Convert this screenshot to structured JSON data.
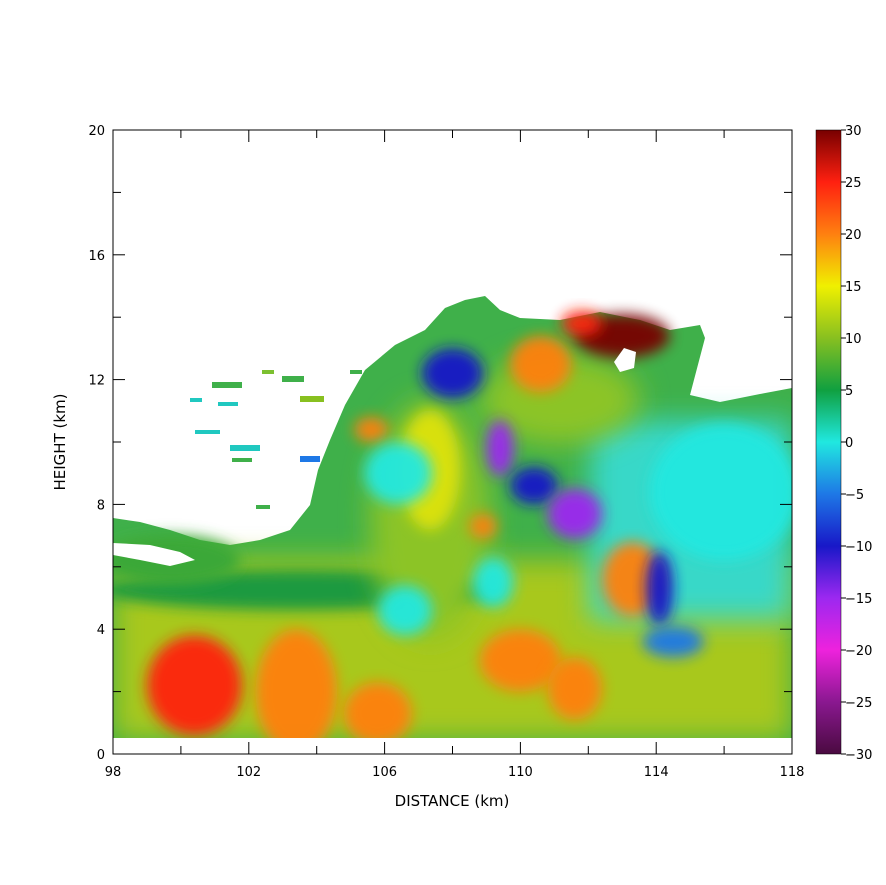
{
  "chart_data": {
    "type": "heatmap",
    "title": "",
    "xlabel": "DISTANCE (km)",
    "ylabel": "HEIGHT (km)",
    "xlim": [
      98,
      118
    ],
    "ylim": [
      0,
      20
    ],
    "x_ticks": [
      98,
      102,
      106,
      110,
      114,
      118
    ],
    "y_ticks": [
      0,
      4,
      8,
      12,
      16,
      20
    ],
    "colorbar": {
      "range": [
        -30,
        30
      ],
      "ticks": [
        30,
        25,
        20,
        15,
        10,
        5,
        0,
        -5,
        -10,
        -15,
        -20,
        -25,
        -30
      ],
      "stops": [
        {
          "v": -30,
          "color": "#4a0a40"
        },
        {
          "v": -25,
          "color": "#8a1890"
        },
        {
          "v": -20,
          "color": "#ee22dd"
        },
        {
          "v": -15,
          "color": "#9c28f0"
        },
        {
          "v": -10,
          "color": "#1818c8"
        },
        {
          "v": -5,
          "color": "#1e78e6"
        },
        {
          "v": 0,
          "color": "#20e8e0"
        },
        {
          "v": 5,
          "color": "#10a040"
        },
        {
          "v": 10,
          "color": "#88c020"
        },
        {
          "v": 15,
          "color": "#f0f000"
        },
        {
          "v": 20,
          "color": "#ff8010"
        },
        {
          "v": 25,
          "color": "#ff2010"
        },
        {
          "v": 30,
          "color": "#780000"
        }
      ]
    },
    "features": [
      {
        "x": 100.4,
        "y": 2.2,
        "v": 24,
        "rx": 1.4,
        "ry": 1.6
      },
      {
        "x": 103.4,
        "y": 2.0,
        "v": 20,
        "rx": 1.2,
        "ry": 2.0
      },
      {
        "x": 105.8,
        "y": 1.3,
        "v": 20,
        "rx": 1.0,
        "ry": 1.0
      },
      {
        "x": 110.0,
        "y": 3.0,
        "v": 21,
        "rx": 1.2,
        "ry": 1.0
      },
      {
        "x": 111.6,
        "y": 2.1,
        "v": 20,
        "rx": 0.8,
        "ry": 1.0
      },
      {
        "x": 113.3,
        "y": 5.6,
        "v": 20,
        "rx": 0.9,
        "ry": 1.2
      },
      {
        "x": 108.9,
        "y": 7.3,
        "v": 22,
        "rx": 0.4,
        "ry": 0.4
      },
      {
        "x": 105.6,
        "y": 10.4,
        "v": 20,
        "rx": 0.5,
        "ry": 0.4
      },
      {
        "x": 110.6,
        "y": 12.5,
        "v": 20,
        "rx": 0.9,
        "ry": 0.9
      },
      {
        "x": 113.0,
        "y": 13.4,
        "v": 29,
        "rx": 1.4,
        "ry": 0.7
      },
      {
        "x": 111.8,
        "y": 13.8,
        "v": 26,
        "rx": 0.6,
        "ry": 0.4
      },
      {
        "x": 109.4,
        "y": 9.8,
        "v": -14,
        "rx": 0.4,
        "ry": 0.9
      },
      {
        "x": 110.4,
        "y": 8.6,
        "v": -11,
        "rx": 0.7,
        "ry": 0.6
      },
      {
        "x": 111.6,
        "y": 7.7,
        "v": -13,
        "rx": 0.8,
        "ry": 0.8
      },
      {
        "x": 114.1,
        "y": 5.3,
        "v": -11,
        "rx": 0.4,
        "ry": 1.2
      },
      {
        "x": 108.0,
        "y": 12.2,
        "v": -8,
        "rx": 0.9,
        "ry": 0.8
      },
      {
        "x": 106.4,
        "y": 9.0,
        "v": -2,
        "rx": 1.0,
        "ry": 1.0
      },
      {
        "x": 116.0,
        "y": 8.4,
        "v": -1,
        "rx": 2.2,
        "ry": 2.2
      },
      {
        "x": 106.6,
        "y": 4.6,
        "v": 0,
        "rx": 0.8,
        "ry": 0.8
      },
      {
        "x": 114.5,
        "y": 3.6,
        "v": -3,
        "rx": 0.9,
        "ry": 0.5
      },
      {
        "x": 109.2,
        "y": 5.5,
        "v": -1,
        "rx": 0.6,
        "ry": 0.8
      }
    ]
  }
}
